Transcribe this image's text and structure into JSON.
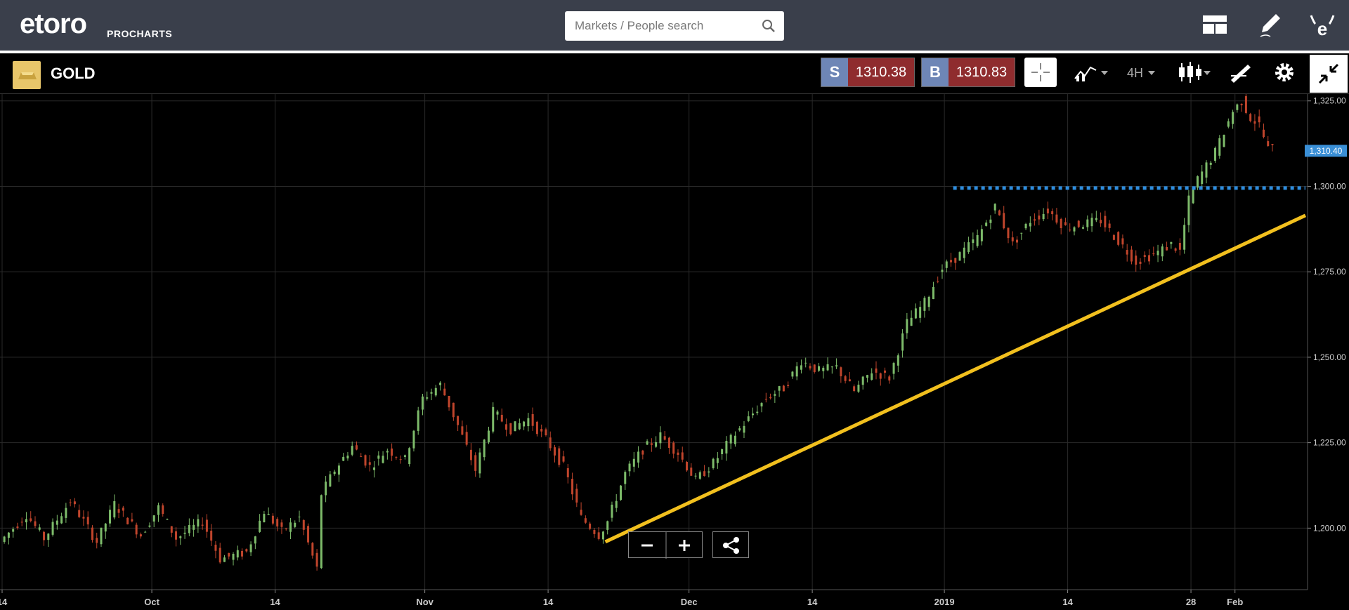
{
  "header": {
    "logo_text": "etoro",
    "logo_sub": "PROCHARTS",
    "search_placeholder": "Markets / People search",
    "icons": [
      "layout-icon",
      "pencil-icon",
      "etoro-e-icon"
    ]
  },
  "instrument": {
    "name": "GOLD",
    "sell_label": "S",
    "sell_price": "1310.38",
    "buy_label": "B",
    "buy_price": "1310.83",
    "timeframe": "4H"
  },
  "colors": {
    "background": "#000000",
    "up": "#7dbb6a",
    "down": "#c0452c",
    "grid": "#2a2a2a",
    "trendline": "#f2c01e",
    "resistance": "#2e8ee0",
    "price_label": "#3a8fd6"
  },
  "chart_data": {
    "type": "candlestick",
    "title": "",
    "x_ticks": [
      "14",
      "Oct",
      "14",
      "Nov",
      "14",
      "Dec",
      "14",
      "2019",
      "14",
      "28",
      "Feb"
    ],
    "y_ticks": [
      "1,325.00",
      "1,300.00",
      "1,275.00",
      "1,250.00",
      "1,225.00",
      "1,200.00"
    ],
    "ylim": [
      1182,
      1327
    ],
    "current_price_label": "1,310.40",
    "current_price": 1310.4,
    "x_span_days": [
      0,
      148
    ],
    "x_tick_days": [
      0,
      17,
      31,
      48,
      62,
      78,
      92,
      107,
      121,
      135,
      140
    ],
    "price_path": [
      [
        0,
        1196
      ],
      [
        3,
        1204
      ],
      [
        5,
        1197
      ],
      [
        8,
        1208
      ],
      [
        11,
        1196
      ],
      [
        13,
        1207
      ],
      [
        16,
        1198
      ],
      [
        18,
        1206
      ],
      [
        20,
        1197
      ],
      [
        23,
        1202
      ],
      [
        25,
        1191
      ],
      [
        28,
        1193
      ],
      [
        30,
        1205
      ],
      [
        32,
        1199
      ],
      [
        34,
        1203
      ],
      [
        36,
        1188
      ],
      [
        36.5,
        1210
      ],
      [
        38,
        1217
      ],
      [
        40,
        1224
      ],
      [
        42,
        1218
      ],
      [
        44,
        1223
      ],
      [
        46,
        1220
      ],
      [
        48,
        1238
      ],
      [
        50,
        1242
      ],
      [
        52,
        1230
      ],
      [
        54,
        1217
      ],
      [
        56,
        1234
      ],
      [
        58,
        1229
      ],
      [
        60,
        1232
      ],
      [
        62,
        1226
      ],
      [
        64,
        1218
      ],
      [
        66,
        1203
      ],
      [
        68,
        1198
      ],
      [
        69,
        1202
      ],
      [
        71,
        1216
      ],
      [
        73,
        1223
      ],
      [
        75,
        1227
      ],
      [
        77,
        1222
      ],
      [
        79,
        1214
      ],
      [
        81,
        1219
      ],
      [
        83,
        1226
      ],
      [
        85,
        1232
      ],
      [
        87,
        1238
      ],
      [
        89,
        1241
      ],
      [
        91,
        1249
      ],
      [
        93,
        1246
      ],
      [
        95,
        1247
      ],
      [
        97,
        1240
      ],
      [
        99,
        1246
      ],
      [
        101,
        1244
      ],
      [
        103,
        1260
      ],
      [
        105,
        1266
      ],
      [
        107,
        1276
      ],
      [
        109,
        1280
      ],
      [
        111,
        1285
      ],
      [
        113,
        1294
      ],
      [
        115,
        1283
      ],
      [
        117,
        1290
      ],
      [
        119,
        1293
      ],
      [
        121,
        1288
      ],
      [
        123,
        1289
      ],
      [
        125,
        1290
      ],
      [
        127,
        1284
      ],
      [
        129,
        1278
      ],
      [
        131,
        1280
      ],
      [
        133,
        1283
      ],
      [
        134,
        1281
      ],
      [
        135,
        1296
      ],
      [
        136,
        1302
      ],
      [
        138,
        1310
      ],
      [
        140,
        1322
      ],
      [
        141,
        1325
      ],
      [
        142,
        1320
      ],
      [
        143,
        1318
      ],
      [
        144,
        1311
      ]
    ],
    "trendline": [
      [
        68.5,
        1196
      ],
      [
        148,
        1291.5
      ]
    ],
    "resistance": [
      [
        108,
        1299.5
      ],
      [
        148,
        1299.5
      ]
    ]
  }
}
